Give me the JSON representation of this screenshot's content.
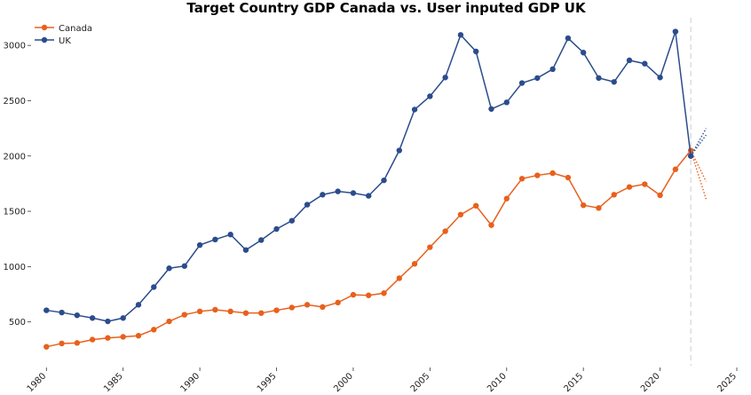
{
  "chart_data": {
    "type": "line",
    "title": "Target Country GDP Canada vs. User inputed GDP UK",
    "xlabel": "",
    "ylabel": "",
    "xlim": [
      1979,
      2025
    ],
    "ylim": [
      120,
      3250
    ],
    "x_ticks": [
      1980,
      1985,
      1990,
      1995,
      2000,
      2005,
      2010,
      2015,
      2020,
      2025
    ],
    "y_ticks": [
      500,
      1000,
      1500,
      2000,
      2500,
      3000
    ],
    "grid": false,
    "legend_position": "top-left",
    "marker_line_x": 2022,
    "x": [
      1980,
      1981,
      1982,
      1983,
      1984,
      1985,
      1986,
      1987,
      1988,
      1989,
      1990,
      1991,
      1992,
      1993,
      1994,
      1995,
      1996,
      1997,
      1998,
      1999,
      2000,
      2001,
      2002,
      2003,
      2004,
      2005,
      2006,
      2007,
      2008,
      2009,
      2010,
      2011,
      2012,
      2013,
      2014,
      2015,
      2016,
      2017,
      2018,
      2019,
      2020,
      2021,
      2022
    ],
    "series": [
      {
        "name": "Canada",
        "color": "#e8601c",
        "values": [
          275,
          305,
          310,
          340,
          355,
          365,
          375,
          430,
          505,
          565,
          595,
          610,
          595,
          580,
          580,
          605,
          630,
          655,
          635,
          675,
          745,
          740,
          760,
          895,
          1025,
          1175,
          1320,
          1470,
          1550,
          1375,
          1615,
          1795,
          1825,
          1845,
          1805,
          1555,
          1530,
          1650,
          1720,
          1745,
          1645,
          1880,
          2050
        ],
        "forecast": [
          {
            "x": [
              2022,
              2023
            ],
            "y": [
              2050,
              1610
            ]
          },
          {
            "x": [
              2022,
              2023
            ],
            "y": [
              2050,
              1770
            ]
          }
        ]
      },
      {
        "name": "UK",
        "color": "#2b4c8c",
        "values": [
          605,
          585,
          560,
          535,
          505,
          535,
          655,
          815,
          985,
          1005,
          1195,
          1245,
          1290,
          1150,
          1240,
          1340,
          1415,
          1560,
          1650,
          1680,
          1665,
          1640,
          1780,
          2050,
          2420,
          2540,
          2710,
          3095,
          2945,
          2425,
          2485,
          2660,
          2705,
          2785,
          3065,
          2935,
          2705,
          2670,
          2865,
          2835,
          2710,
          3125,
          2000
        ],
        "forecast": [
          {
            "x": [
              2022,
              2023
            ],
            "y": [
              2000,
              2190
            ]
          },
          {
            "x": [
              2022,
              2023
            ],
            "y": [
              2000,
              2250
            ]
          }
        ]
      }
    ]
  }
}
